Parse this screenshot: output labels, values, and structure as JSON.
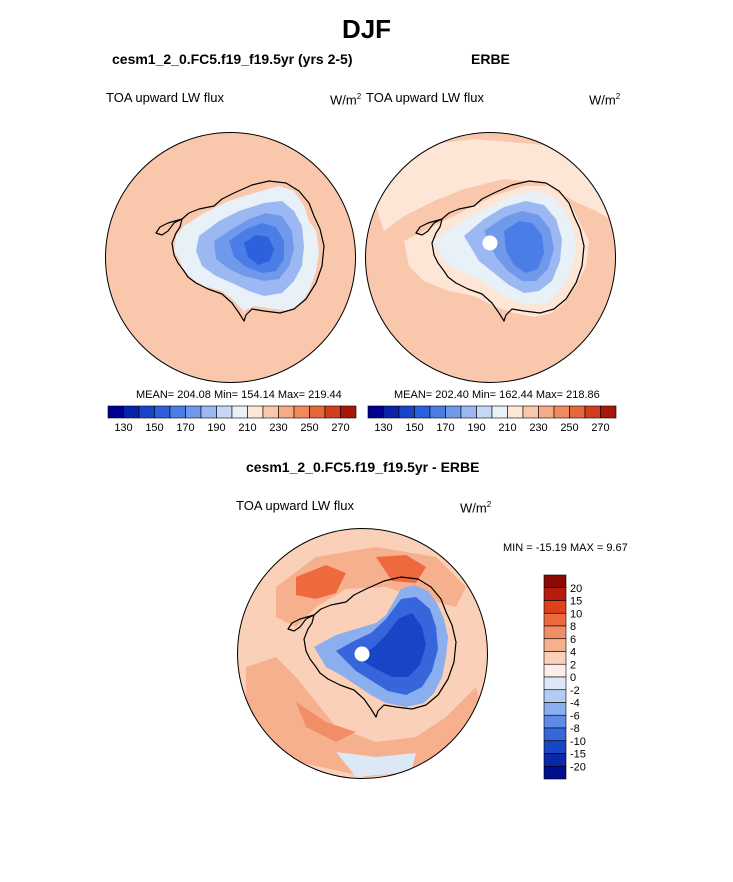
{
  "title": "DJF",
  "panels": [
    {
      "subtitle": "cesm1_2_0.FC5.f19_f19.5yr (yrs 2-5)",
      "left_label": "TOA upward LW flux",
      "units": "W/m",
      "units_exp": "2",
      "stats": "MEAN= 204.08  Min= 154.14  Max= 219.44"
    },
    {
      "subtitle": "ERBE",
      "left_label": "TOA upward LW flux",
      "units": "W/m",
      "units_exp": "2",
      "stats": "MEAN= 202.40  Min= 162.44  Max= 218.86"
    },
    {
      "subtitle": "cesm1_2_0.FC5.f19_f19.5yr - ERBE",
      "left_label": "TOA upward LW flux",
      "units": "W/m",
      "units_exp": "2",
      "stats": "MIN = -15.19 MAX =   9.67"
    }
  ],
  "chart_data": [
    {
      "type": "heatmap",
      "projection": "south polar stereographic",
      "title": "cesm1_2_0.FC5.f19_f19.5yr (yrs 2-5)",
      "variable": "TOA upward LW flux",
      "units": "W/m2",
      "mean": 204.08,
      "min": 154.14,
      "max": 219.44,
      "colorbar": {
        "levels": [
          130,
          140,
          150,
          160,
          170,
          180,
          190,
          200,
          210,
          220,
          230,
          240,
          250,
          260,
          270
        ],
        "tick_labels": [
          "130",
          "150",
          "170",
          "190",
          "210",
          "230",
          "250",
          "270"
        ],
        "colors": [
          "#000090",
          "#0a24a8",
          "#1845c8",
          "#2c60dc",
          "#4a7ee6",
          "#7099ec",
          "#9cb8f2",
          "#c6d8f6",
          "#e8f0f8",
          "#fde6d5",
          "#f9c8ac",
          "#f6aa86",
          "#ef8a5e",
          "#e6673a",
          "#d23f1c",
          "#a8180a"
        ],
        "orientation": "horizontal"
      }
    },
    {
      "type": "heatmap",
      "projection": "south polar stereographic",
      "title": "ERBE",
      "variable": "TOA upward LW flux",
      "units": "W/m2",
      "mean": 202.4,
      "min": 162.44,
      "max": 218.86,
      "colorbar": {
        "levels": [
          130,
          140,
          150,
          160,
          170,
          180,
          190,
          200,
          210,
          220,
          230,
          240,
          250,
          260,
          270
        ],
        "tick_labels": [
          "130",
          "150",
          "170",
          "190",
          "210",
          "230",
          "250",
          "270"
        ],
        "colors": [
          "#000090",
          "#0a24a8",
          "#1845c8",
          "#2c60dc",
          "#4a7ee6",
          "#7099ec",
          "#9cb8f2",
          "#c6d8f6",
          "#e8f0f8",
          "#fde6d5",
          "#f9c8ac",
          "#f6aa86",
          "#ef8a5e",
          "#e6673a",
          "#d23f1c",
          "#a8180a"
        ],
        "orientation": "horizontal"
      }
    },
    {
      "type": "heatmap",
      "projection": "south polar stereographic",
      "title": "cesm1_2_0.FC5.f19_f19.5yr - ERBE",
      "variable": "TOA upward LW flux",
      "units": "W/m2",
      "min": -15.19,
      "max": 9.67,
      "colorbar": {
        "tick_labels": [
          "20",
          "15",
          "10",
          "8",
          "6",
          "4",
          "2",
          "0",
          "-2",
          "-4",
          "-6",
          "-8",
          "-10",
          "-15",
          "-20"
        ],
        "colors": [
          "#8a0a06",
          "#b81c0c",
          "#e0401c",
          "#ee6a3e",
          "#f28e66",
          "#f6b08e",
          "#fad0b8",
          "#fbeee6",
          "#dce8f6",
          "#b2ccf2",
          "#8aaeee",
          "#5f8ae6",
          "#3766dc",
          "#1a44c6",
          "#0a28a8",
          "#00108c"
        ],
        "orientation": "vertical"
      }
    }
  ]
}
